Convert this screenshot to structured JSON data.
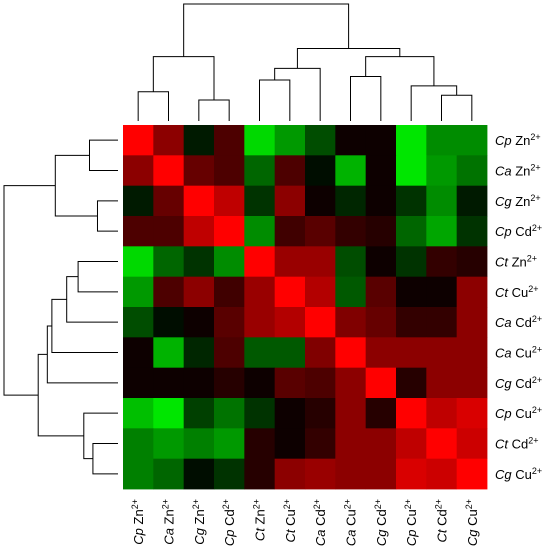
{
  "chart_data": {
    "type": "heatmap",
    "title": "",
    "xlabel": "",
    "ylabel": "",
    "color_scale": {
      "low": "#00ff00",
      "mid": "#000000",
      "high": "#ff0000",
      "range": [
        -1,
        1
      ]
    },
    "rows": [
      {
        "species": "Cp",
        "ion": "Zn",
        "charge": "2+"
      },
      {
        "species": "Ca",
        "ion": "Zn",
        "charge": "2+"
      },
      {
        "species": "Cg",
        "ion": "Zn",
        "charge": "2+"
      },
      {
        "species": "Cp",
        "ion": "Cd",
        "charge": "2+"
      },
      {
        "species": "Ct",
        "ion": "Zn",
        "charge": "2+"
      },
      {
        "species": "Ct",
        "ion": "Cu",
        "charge": "2+"
      },
      {
        "species": "Ca",
        "ion": "Cd",
        "charge": "2+"
      },
      {
        "species": "Ca",
        "ion": "Cu",
        "charge": "2+"
      },
      {
        "species": "Cg",
        "ion": "Cd",
        "charge": "2+"
      },
      {
        "species": "Cp",
        "ion": "Cu",
        "charge": "2+"
      },
      {
        "species": "Ct",
        "ion": "Cd",
        "charge": "2+"
      },
      {
        "species": "Cg",
        "ion": "Cu",
        "charge": "2+"
      }
    ],
    "columns": [
      {
        "species": "Cp",
        "ion": "Zn",
        "charge": "2+"
      },
      {
        "species": "Ca",
        "ion": "Zn",
        "charge": "2+"
      },
      {
        "species": "Cg",
        "ion": "Zn",
        "charge": "2+"
      },
      {
        "species": "Cp",
        "ion": "Cd",
        "charge": "2+"
      },
      {
        "species": "Ct",
        "ion": "Zn",
        "charge": "2+"
      },
      {
        "species": "Ct",
        "ion": "Cu",
        "charge": "2+"
      },
      {
        "species": "Ca",
        "ion": "Cd",
        "charge": "2+"
      },
      {
        "species": "Ca",
        "ion": "Cu",
        "charge": "2+"
      },
      {
        "species": "Cg",
        "ion": "Cd",
        "charge": "2+"
      },
      {
        "species": "Cp",
        "ion": "Cu",
        "charge": "2+"
      },
      {
        "species": "Ct",
        "ion": "Cd",
        "charge": "2+"
      },
      {
        "species": "Cg",
        "ion": "Cu",
        "charge": "2+"
      }
    ],
    "values": [
      [
        1.0,
        0.55,
        -0.1,
        0.3,
        -0.85,
        -0.6,
        -0.3,
        0.05,
        0.05,
        -0.9,
        -0.55,
        -0.55
      ],
      [
        0.55,
        1.0,
        0.4,
        0.3,
        -0.4,
        0.3,
        -0.05,
        -0.7,
        0.05,
        -0.9,
        -0.6,
        -0.45
      ],
      [
        -0.1,
        0.4,
        1.0,
        0.75,
        -0.2,
        0.55,
        0.05,
        -0.15,
        0.05,
        -0.2,
        -0.55,
        -0.1
      ],
      [
        0.3,
        0.3,
        0.75,
        1.0,
        -0.55,
        0.25,
        0.35,
        0.2,
        0.15,
        -0.4,
        -0.65,
        -0.2
      ],
      [
        -0.85,
        -0.4,
        -0.2,
        -0.55,
        1.0,
        0.6,
        0.6,
        -0.3,
        0.05,
        -0.2,
        0.2,
        0.15
      ],
      [
        -0.6,
        0.3,
        0.55,
        0.25,
        0.6,
        1.0,
        0.7,
        -0.35,
        0.35,
        0.05,
        0.05,
        0.55
      ],
      [
        -0.3,
        -0.05,
        0.05,
        0.35,
        0.6,
        0.7,
        1.0,
        0.5,
        0.4,
        0.2,
        0.2,
        0.55
      ],
      [
        0.05,
        -0.7,
        -0.15,
        0.3,
        -0.35,
        -0.35,
        0.5,
        1.0,
        0.55,
        0.55,
        0.55,
        0.55
      ],
      [
        0.05,
        0.05,
        0.05,
        0.15,
        0.05,
        0.35,
        0.3,
        0.55,
        1.0,
        0.15,
        0.55,
        0.55
      ],
      [
        -0.75,
        -0.9,
        -0.25,
        -0.45,
        -0.2,
        0.05,
        0.15,
        0.55,
        0.15,
        1.0,
        0.75,
        0.85
      ],
      [
        -0.5,
        -0.6,
        -0.5,
        -0.6,
        0.15,
        0.05,
        0.2,
        0.55,
        0.55,
        0.75,
        1.0,
        0.8
      ],
      [
        -0.5,
        -0.4,
        -0.05,
        -0.2,
        0.15,
        0.55,
        0.6,
        0.55,
        0.55,
        0.85,
        0.8,
        1.0
      ]
    ],
    "row_dendrogram": [
      {
        "a": 0,
        "b": 1,
        "h": 0.25
      },
      {
        "a": 2,
        "b": 3,
        "h": 0.18
      },
      {
        "a": 12,
        "b": 13,
        "h": 0.55
      },
      {
        "a": 4,
        "b": 5,
        "h": 0.35
      },
      {
        "a": 15,
        "b": 6,
        "h": 0.45
      },
      {
        "a": 16,
        "b": 7,
        "h": 0.58
      },
      {
        "a": 17,
        "b": 8,
        "h": 0.62
      },
      {
        "a": 10,
        "b": 11,
        "h": 0.22
      },
      {
        "a": 19,
        "b": 9,
        "h": 0.3
      },
      {
        "a": 18,
        "b": 20,
        "h": 0.7
      },
      {
        "a": 14,
        "b": 21,
        "h": 1.0
      }
    ],
    "col_dendrogram": [
      {
        "a": 0,
        "b": 1,
        "h": 0.25
      },
      {
        "a": 2,
        "b": 3,
        "h": 0.18
      },
      {
        "a": 12,
        "b": 13,
        "h": 0.55
      },
      {
        "a": 4,
        "b": 5,
        "h": 0.35
      },
      {
        "a": 15,
        "b": 6,
        "h": 0.45
      },
      {
        "a": 7,
        "b": 8,
        "h": 0.38
      },
      {
        "a": 10,
        "b": 11,
        "h": 0.22
      },
      {
        "a": 18,
        "b": 9,
        "h": 0.3
      },
      {
        "a": 17,
        "b": 19,
        "h": 0.55
      },
      {
        "a": 16,
        "b": 20,
        "h": 0.62
      },
      {
        "a": 14,
        "b": 21,
        "h": 1.0
      }
    ]
  }
}
